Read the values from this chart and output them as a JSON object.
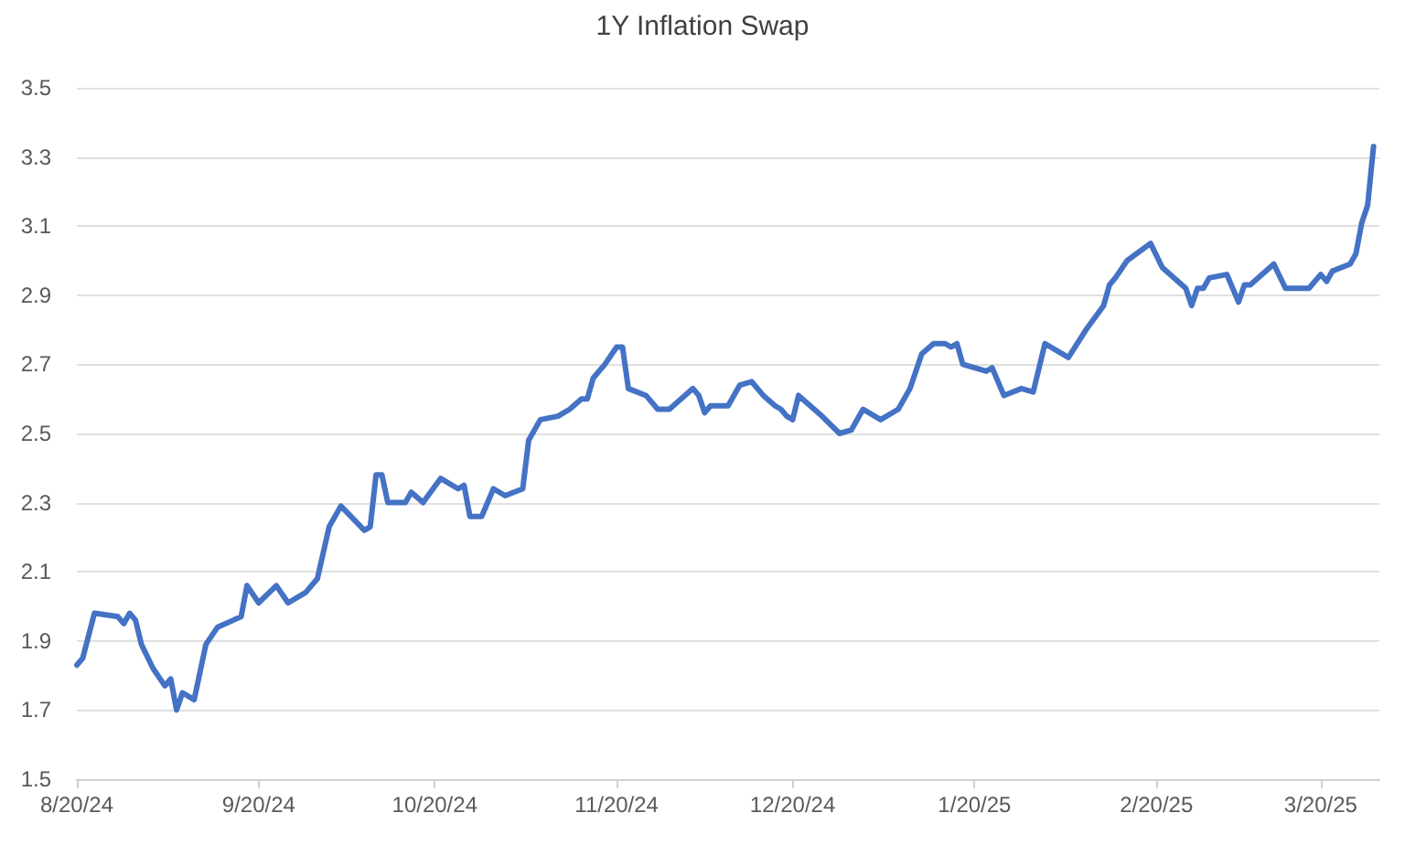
{
  "chart_data": {
    "type": "line",
    "title": "1Y Inflation Swap",
    "x": [
      "2024-08-20",
      "2024-08-21",
      "2024-08-23",
      "2024-08-27",
      "2024-08-28",
      "2024-08-29",
      "2024-08-30",
      "2024-08-31",
      "2024-09-02",
      "2024-09-04",
      "2024-09-05",
      "2024-09-06",
      "2024-09-07",
      "2024-09-09",
      "2024-09-11",
      "2024-09-13",
      "2024-09-17",
      "2024-09-18",
      "2024-09-20",
      "2024-09-23",
      "2024-09-25",
      "2024-09-28",
      "2024-09-30",
      "2024-10-02",
      "2024-10-04",
      "2024-10-08",
      "2024-10-09",
      "2024-10-10",
      "2024-10-11",
      "2024-10-12",
      "2024-10-15",
      "2024-10-16",
      "2024-10-18",
      "2024-10-21",
      "2024-10-24",
      "2024-10-25",
      "2024-10-26",
      "2024-10-28",
      "2024-10-30",
      "2024-11-01",
      "2024-11-04",
      "2024-11-05",
      "2024-11-07",
      "2024-11-10",
      "2024-11-12",
      "2024-11-14",
      "2024-11-15",
      "2024-11-16",
      "2024-11-18",
      "2024-11-20",
      "2024-11-21",
      "2024-11-22",
      "2024-11-25",
      "2024-11-27",
      "2024-11-29",
      "2024-12-03",
      "2024-12-04",
      "2024-12-05",
      "2024-12-06",
      "2024-12-09",
      "2024-12-11",
      "2024-12-13",
      "2024-12-15",
      "2024-12-17",
      "2024-12-18",
      "2024-12-19",
      "2024-12-20",
      "2024-12-21",
      "2024-12-25",
      "2024-12-28",
      "2024-12-30",
      "2025-01-01",
      "2025-01-04",
      "2025-01-07",
      "2025-01-09",
      "2025-01-11",
      "2025-01-13",
      "2025-01-15",
      "2025-01-16",
      "2025-01-17",
      "2025-01-18",
      "2025-01-22",
      "2025-01-23",
      "2025-01-25",
      "2025-01-28",
      "2025-01-30",
      "2025-02-01",
      "2025-02-05",
      "2025-02-08",
      "2025-02-11",
      "2025-02-12",
      "2025-02-13",
      "2025-02-15",
      "2025-02-19",
      "2025-02-21",
      "2025-02-25",
      "2025-02-26",
      "2025-02-27",
      "2025-02-28",
      "2025-03-01",
      "2025-03-04",
      "2025-03-06",
      "2025-03-07",
      "2025-03-08",
      "2025-03-12",
      "2025-03-14",
      "2025-03-18",
      "2025-03-20",
      "2025-03-21",
      "2025-03-22",
      "2025-03-25",
      "2025-03-26",
      "2025-03-27",
      "2025-03-28",
      "2025-03-29"
    ],
    "series": [
      {
        "color": "#4472c4",
        "values": [
          1.83,
          1.85,
          1.98,
          1.97,
          1.95,
          1.98,
          1.96,
          1.89,
          1.82,
          1.77,
          1.79,
          1.7,
          1.75,
          1.73,
          1.89,
          1.94,
          1.97,
          2.06,
          2.01,
          2.06,
          2.01,
          2.04,
          2.08,
          2.23,
          2.29,
          2.22,
          2.23,
          2.38,
          2.38,
          2.3,
          2.3,
          2.33,
          2.3,
          2.37,
          2.34,
          2.35,
          2.26,
          2.26,
          2.34,
          2.32,
          2.34,
          2.48,
          2.54,
          2.55,
          2.57,
          2.6,
          2.6,
          2.66,
          2.7,
          2.75,
          2.75,
          2.63,
          2.61,
          2.57,
          2.57,
          2.63,
          2.61,
          2.56,
          2.58,
          2.58,
          2.64,
          2.65,
          2.61,
          2.58,
          2.57,
          2.55,
          2.54,
          2.61,
          2.55,
          2.5,
          2.51,
          2.57,
          2.54,
          2.57,
          2.63,
          2.73,
          2.76,
          2.76,
          2.75,
          2.76,
          2.7,
          2.68,
          2.69,
          2.61,
          2.63,
          2.62,
          2.76,
          2.72,
          2.8,
          2.87,
          2.93,
          2.95,
          3.0,
          3.05,
          2.98,
          2.92,
          2.87,
          2.92,
          2.92,
          2.95,
          2.96,
          2.88,
          2.93,
          2.93,
          2.99,
          2.92,
          2.92,
          2.96,
          2.94,
          2.97,
          2.99,
          3.02,
          3.11,
          3.16,
          3.33
        ]
      }
    ],
    "xlim": [
      "2024-08-20",
      "2025-03-30"
    ],
    "xticks": [
      {
        "value": "2024-08-20",
        "label": "8/20/24"
      },
      {
        "value": "2024-09-20",
        "label": "9/20/24"
      },
      {
        "value": "2024-10-20",
        "label": "10/20/24"
      },
      {
        "value": "2024-11-20",
        "label": "11/20/24"
      },
      {
        "value": "2024-12-20",
        "label": "12/20/24"
      },
      {
        "value": "2025-01-20",
        "label": "1/20/25"
      },
      {
        "value": "2025-02-20",
        "label": "2/20/25"
      },
      {
        "value": "2025-03-20",
        "label": "3/20/25"
      }
    ],
    "ylim": [
      1.5,
      3.5
    ],
    "yticks": [
      1.5,
      1.7,
      1.9,
      2.1,
      2.3,
      2.5,
      2.7,
      2.9,
      3.1,
      3.3,
      3.5
    ],
    "grid": "y",
    "marker": "none",
    "line_style": "solid"
  }
}
